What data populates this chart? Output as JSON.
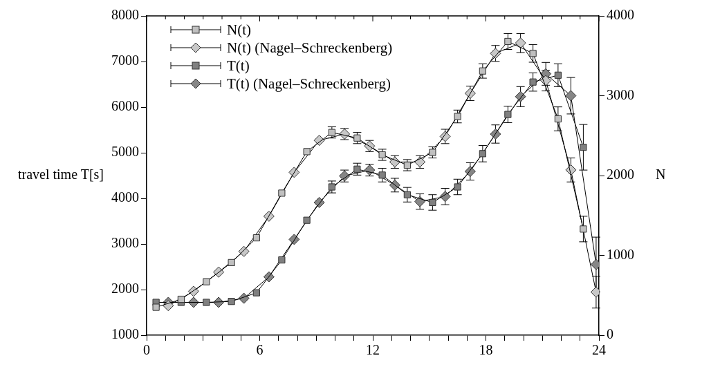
{
  "chart_data": {
    "type": "line",
    "ylabel": "travel time T[s]",
    "y2label": "N",
    "legend": "top left",
    "grid": false,
    "line_style": "solid",
    "xlim": [
      0,
      24
    ],
    "xticks": [
      0,
      {
        "value": 1,
        "label": null
      },
      {
        "value": 2,
        "label": null
      },
      {
        "value": 3,
        "label": null
      },
      {
        "value": 4,
        "label": null
      },
      {
        "value": 5,
        "label": null
      },
      6,
      {
        "value": 7,
        "label": null
      },
      {
        "value": 8,
        "label": null
      },
      {
        "value": 9,
        "label": null
      },
      {
        "value": 10,
        "label": null
      },
      {
        "value": 11,
        "label": null
      },
      12,
      {
        "value": 13,
        "label": null
      },
      {
        "value": 14,
        "label": null
      },
      {
        "value": 15,
        "label": null
      },
      {
        "value": 16,
        "label": null
      },
      {
        "value": 17,
        "label": null
      },
      18,
      {
        "value": 19,
        "label": null
      },
      {
        "value": 20,
        "label": null
      },
      {
        "value": 21,
        "label": null
      },
      {
        "value": 22,
        "label": null
      },
      {
        "value": 23,
        "label": null
      },
      24
    ],
    "ylim": [
      1000,
      8000
    ],
    "yticks": [
      1000,
      2000,
      3000,
      4000,
      5000,
      6000,
      7000,
      8000
    ],
    "y2lim": [
      0,
      4000
    ],
    "y2ticks": [
      0,
      1000,
      2000,
      3000,
      4000
    ],
    "series": [
      {
        "name": "N(t)",
        "color": "#c0c0c0",
        "marker": "square",
        "axis": "y2",
        "x": [
          0.5,
          1.83,
          3.17,
          4.5,
          5.83,
          7.17,
          8.5,
          9.83,
          11.17,
          12.5,
          13.83,
          15.17,
          16.5,
          17.83,
          19.17,
          20.5,
          21.83,
          23.17
        ],
        "values": [
          350,
          450,
          670,
          910,
          1220,
          1780,
          2300,
          2540,
          2470,
          2260,
          2130,
          2290,
          2740,
          3310,
          3680,
          3530,
          2710,
          1330
        ],
        "errors": [
          null,
          null,
          null,
          null,
          null,
          null,
          null,
          70,
          70,
          70,
          70,
          70,
          80,
          90,
          100,
          110,
          150,
          160
        ]
      },
      {
        "name": "N(t) (Nagel–Schreckenberg)",
        "color": "#c8c8c8",
        "marker": "diamond",
        "axis": "y2",
        "x": [
          1.15,
          2.49,
          3.82,
          5.16,
          6.49,
          7.83,
          9.16,
          10.5,
          11.83,
          13.17,
          14.5,
          15.84,
          17.17,
          18.51,
          19.84,
          21.18,
          22.51,
          23.85
        ],
        "values": [
          370,
          550,
          790,
          1050,
          1490,
          2040,
          2440,
          2520,
          2370,
          2170,
          2170,
          2490,
          3030,
          3530,
          3660,
          3190,
          2070,
          540
        ],
        "errors": [
          null,
          null,
          null,
          null,
          null,
          null,
          null,
          70,
          70,
          80,
          80,
          90,
          90,
          100,
          120,
          130,
          150,
          200
        ]
      },
      {
        "name": "T(t)",
        "color": "#808080",
        "marker": "square",
        "axis": "y",
        "x": [
          0.5,
          1.83,
          3.17,
          4.5,
          5.83,
          7.17,
          8.5,
          9.83,
          11.17,
          12.5,
          13.83,
          15.17,
          16.5,
          17.83,
          19.17,
          20.5,
          21.83,
          23.17
        ],
        "values": [
          1720,
          1720,
          1720,
          1740,
          1930,
          2650,
          3520,
          4250,
          4640,
          4510,
          4080,
          3910,
          4250,
          4980,
          5840,
          6550,
          6700,
          5120
        ],
        "errors": [
          null,
          null,
          null,
          null,
          null,
          null,
          null,
          130,
          130,
          150,
          160,
          170,
          170,
          180,
          180,
          200,
          250,
          500
        ]
      },
      {
        "name": "T(t) (Nagel–Schreckenberg)",
        "color": "#868686",
        "marker": "diamond",
        "axis": "y",
        "x": [
          1.15,
          2.49,
          3.82,
          5.16,
          6.49,
          7.83,
          9.16,
          10.5,
          11.83,
          13.17,
          14.5,
          15.84,
          17.17,
          18.51,
          19.84,
          21.18,
          22.51,
          23.85
        ],
        "values": [
          1720,
          1720,
          1720,
          1810,
          2280,
          3100,
          3910,
          4490,
          4620,
          4290,
          3930,
          4040,
          4590,
          5410,
          6230,
          6730,
          6250,
          2550
        ],
        "errors": [
          null,
          null,
          null,
          null,
          null,
          null,
          null,
          130,
          130,
          150,
          170,
          180,
          190,
          200,
          220,
          250,
          400,
          600
        ]
      }
    ]
  }
}
